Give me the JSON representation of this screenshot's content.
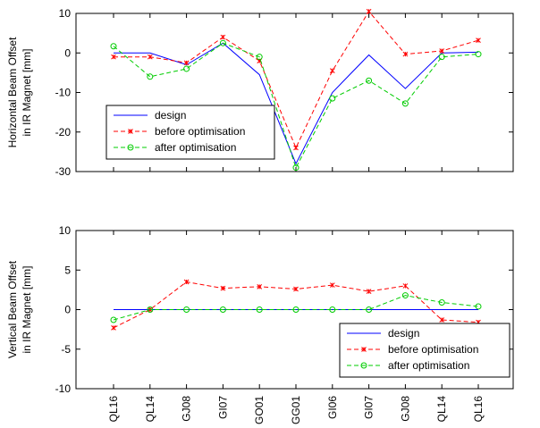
{
  "chart_data": [
    {
      "type": "line",
      "ylabel": [
        "Horizontal Beam Offset",
        "in IR Magnet [mm]"
      ],
      "ylim": [
        -30,
        10
      ],
      "yticks": [
        -30,
        -20,
        -10,
        0,
        10
      ],
      "categories": [
        "QL16",
        "QL14",
        "GJ08",
        "GI07",
        "GO01",
        "GG01",
        "GI06",
        "GI07",
        "GJ08",
        "QL14",
        "QL16"
      ],
      "legend_position": "bottom-left",
      "grid": false,
      "series": [
        {
          "name": "design",
          "color": "#0000ff",
          "dash": "solid",
          "marker": "none",
          "values": [
            0,
            0,
            -3,
            2.5,
            -5.5,
            -28,
            -10,
            -0.5,
            -9,
            0,
            0.2
          ]
        },
        {
          "name": "before optimisation",
          "color": "#ff0000",
          "dash": "dashed",
          "marker": "x",
          "values": [
            -1,
            -1,
            -2.5,
            4,
            -2,
            -24,
            -4.5,
            10.5,
            -0.3,
            0.5,
            3.2
          ]
        },
        {
          "name": "after optimisation",
          "color": "#00cc00",
          "dash": "dashed",
          "marker": "circle",
          "values": [
            1.7,
            -6,
            -4,
            2.5,
            -1,
            -29,
            -11.5,
            -7,
            -12.8,
            -1,
            -0.3
          ]
        }
      ]
    },
    {
      "type": "line",
      "ylabel": [
        "Vertical Beam Offset",
        "in IR Magnet [mm]"
      ],
      "ylim": [
        -10,
        10
      ],
      "yticks": [
        -10,
        -5,
        0,
        5,
        10
      ],
      "categories": [
        "QL16",
        "QL14",
        "GJ08",
        "GI07",
        "GO01",
        "GG01",
        "GI06",
        "GI07",
        "GJ08",
        "QL14",
        "QL16"
      ],
      "legend_position": "bottom-right",
      "grid": false,
      "series": [
        {
          "name": "design",
          "color": "#0000ff",
          "dash": "solid",
          "marker": "none",
          "values": [
            0,
            0,
            0,
            0,
            0,
            0,
            0,
            0,
            0,
            0,
            0
          ]
        },
        {
          "name": "before optimisation",
          "color": "#ff0000",
          "dash": "dashed",
          "marker": "x",
          "values": [
            -2.3,
            0,
            3.5,
            2.7,
            2.9,
            2.6,
            3.1,
            2.3,
            3,
            -1.3,
            -1.6
          ]
        },
        {
          "name": "after optimisation",
          "color": "#00cc00",
          "dash": "dashed",
          "marker": "circle",
          "values": [
            -1.3,
            0,
            0,
            0,
            0,
            0,
            0,
            0,
            1.8,
            0.9,
            0.4
          ]
        }
      ]
    }
  ]
}
